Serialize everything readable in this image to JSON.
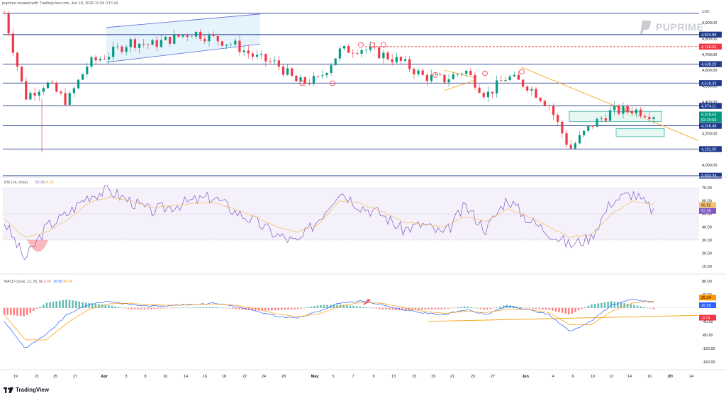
{
  "header": "puprime created with TradingView.com, Jun 18, 2026 11:34 UTC+8",
  "brand_label": "PUPRIME",
  "footer_logo": "TradingView",
  "price_panel": {
    "currency": "USD",
    "levels": [
      4101.0,
      4248.48,
      4374.11,
      4518.33,
      4638.2,
      4824.88,
      4960.0,
      3933.24
    ],
    "level_tags": [
      {
        "label": "4,824.88",
        "value": 4824.88,
        "color": "#1e3a8a"
      },
      {
        "label": "4,749.02",
        "value": 4749.02,
        "color": "#f23645"
      },
      {
        "label": "4,638.20",
        "value": 4638.2,
        "color": "#1e3a8a"
      },
      {
        "label": "4,518.33",
        "value": 4518.33,
        "color": "#1e3a8a"
      },
      {
        "label": "4,374.11",
        "value": 4374.11,
        "color": "#1e3a8a"
      },
      {
        "label": "4,319.52",
        "value": 4319.52,
        "color": "#089981"
      },
      {
        "label": "02:25:59",
        "value": 4288,
        "color": "#089981"
      },
      {
        "label": "4,248.48",
        "value": 4248.48,
        "color": "#1e3a8a"
      },
      {
        "label": "4,101.00",
        "value": 4101.0,
        "color": "#1e3a8a"
      },
      {
        "label": "3,933.24",
        "value": 3933.24,
        "color": "#1e3a8a"
      }
    ],
    "axis_ticks": [
      "4,900.00",
      "4,800.00",
      "4,700.00",
      "4,600.00",
      "4,500.00",
      "4,400.00",
      "4,200.00",
      "4,100.00",
      "4,000.00"
    ],
    "axis_tick_values": [
      4900,
      4800,
      4700,
      4600,
      4500,
      4400,
      4200,
      4100,
      4000
    ],
    "resistance_dashed": 4749.02
  },
  "rsi_panel": {
    "title": "RSI (14, close)",
    "value_rsi": "52.35",
    "value_ma": "56.92",
    "axis_ticks": [
      "70.00",
      "60.00",
      "50.00",
      "40.00",
      "30.00",
      "20.00",
      "10.00"
    ],
    "axis_tick_values": [
      70,
      60,
      50,
      40,
      30,
      20,
      10
    ],
    "tag_ma": "56.92",
    "tag_rsi": "52.35",
    "band_top": 70,
    "band_mid": 50,
    "band_bottom": 30
  },
  "macd_panel": {
    "title": "MACD (close, 12, 26, 9)",
    "value_hist": "-3.74",
    "value_macd": "16.50",
    "value_signal": "20.24",
    "axis_ticks": [
      "80.00",
      "40.00",
      "-40.00",
      "-80.00",
      "-120.00",
      "-160.00"
    ],
    "axis_tick_values": [
      80,
      40,
      -40,
      -80,
      -120,
      -160
    ],
    "tag_signal": "20.24",
    "tag_macd": "16.50",
    "tag_hist": "-3.74"
  },
  "x_axis": [
    "19",
    "21",
    "25",
    "27",
    "Apr",
    "3",
    "8",
    "10",
    "14",
    "16",
    "18",
    "22",
    "24",
    "28",
    "May",
    "5",
    "7",
    "9",
    "13",
    "15",
    "19",
    "21",
    "23",
    "27",
    "Jun",
    "4",
    "6",
    "10",
    "12",
    "14",
    "16",
    "18",
    "20",
    "24"
  ],
  "colors": {
    "up": "#089981",
    "down": "#f23645",
    "level_line": "#1e3a8a",
    "channel": "#5b6bd6",
    "trendline": "#f5a623",
    "rsi_line": "#7e57c2",
    "rsi_ma": "#f5c26b",
    "macd_line": "#2962ff",
    "signal_line": "#ff9800"
  },
  "chart_data": [
    {
      "type": "line",
      "title": "",
      "series": [
        {
          "name": "",
          "x": [
            "19",
            "21",
            "25",
            "27",
            "Apr",
            "3",
            "8",
            "10",
            "14",
            "16",
            "18",
            "22",
            "24",
            "28",
            "May",
            "5",
            "7",
            "9",
            "13",
            "15",
            "19",
            "21",
            "23",
            "27",
            "Jun",
            "4",
            "6",
            "10",
            "12",
            "14",
            "16",
            "18"
          ],
          "values": [
            4960,
            4430,
            4520,
            4400,
            4640,
            4700,
            4780,
            4760,
            4800,
            4840,
            4800,
            4760,
            4680,
            4640,
            4520,
            4540,
            4720,
            4740,
            4700,
            4650,
            4560,
            4540,
            4600,
            4440,
            4560,
            4500,
            4380,
            4100,
            4250,
            4340,
            4350,
            4319.52
          ]
        }
      ],
      "ylim": [
        3933.24,
        4990
      ]
    },
    {
      "type": "line",
      "title": "RSI (14, close)",
      "series": [
        {
          "name": "",
          "x": [
            "19",
            "21",
            "25",
            "27",
            "Apr",
            "3",
            "8",
            "10",
            "14",
            "16",
            "18",
            "22",
            "24",
            "28",
            "May",
            "5",
            "7",
            "9",
            "13",
            "15",
            "19",
            "21",
            "23",
            "27",
            "Jun",
            "4",
            "6",
            "10",
            "12",
            "14",
            "16",
            "18"
          ],
          "values": [
            44,
            15,
            40,
            50,
            64,
            68,
            60,
            52,
            56,
            60,
            63,
            52,
            44,
            34,
            28,
            46,
            68,
            56,
            50,
            38,
            42,
            34,
            56,
            38,
            62,
            46,
            36,
            26,
            32,
            60,
            66,
            52.35
          ]
        },
        {
          "name": "",
          "x": [
            "19",
            "21",
            "25",
            "27",
            "Apr",
            "3",
            "8",
            "10",
            "14",
            "16",
            "18",
            "22",
            "24",
            "28",
            "May",
            "5",
            "7",
            "9",
            "13",
            "15",
            "19",
            "21",
            "23",
            "27",
            "Jun",
            "4",
            "6",
            "10",
            "12",
            "14",
            "16",
            "18"
          ],
          "values": [
            46,
            32,
            36,
            45,
            58,
            63,
            60,
            55,
            56,
            58,
            59,
            54,
            48,
            40,
            36,
            42,
            60,
            58,
            52,
            44,
            42,
            40,
            48,
            44,
            54,
            48,
            40,
            32,
            34,
            50,
            60,
            56.92
          ]
        }
      ],
      "ylim": [
        5,
        75
      ]
    },
    {
      "type": "line",
      "title": "MACD (close, 12, 26, 9)",
      "series": [
        {
          "name": "",
          "x": [
            "19",
            "21",
            "25",
            "27",
            "Apr",
            "3",
            "8",
            "10",
            "14",
            "16",
            "18",
            "22",
            "24",
            "28",
            "May",
            "5",
            "7",
            "9",
            "13",
            "15",
            "19",
            "21",
            "23",
            "27",
            "Jun",
            "4",
            "6",
            "10",
            "12",
            "14",
            "16",
            "18"
          ],
          "values": [
            -40,
            -120,
            -80,
            -20,
            10,
            20,
            10,
            5,
            8,
            10,
            15,
            5,
            -10,
            -25,
            -30,
            -10,
            15,
            20,
            10,
            -5,
            -15,
            -20,
            -5,
            -20,
            5,
            -5,
            -20,
            -70,
            -40,
            10,
            25,
            16.5
          ]
        },
        {
          "name": "",
          "x": [
            "19",
            "21",
            "25",
            "27",
            "Apr",
            "3",
            "8",
            "10",
            "14",
            "16",
            "18",
            "22",
            "24",
            "28",
            "May",
            "5",
            "7",
            "9",
            "13",
            "15",
            "19",
            "21",
            "23",
            "27",
            "Jun",
            "4",
            "6",
            "10",
            "12",
            "14",
            "16",
            "18"
          ],
          "values": [
            -20,
            -95,
            -95,
            -45,
            -5,
            12,
            14,
            9,
            8,
            9,
            12,
            8,
            -2,
            -18,
            -26,
            -18,
            5,
            16,
            14,
            2,
            -10,
            -16,
            -10,
            -14,
            -4,
            -4,
            -14,
            -50,
            -50,
            -10,
            15,
            20.24
          ]
        }
      ],
      "ylim": [
        -175,
        90
      ]
    }
  ]
}
